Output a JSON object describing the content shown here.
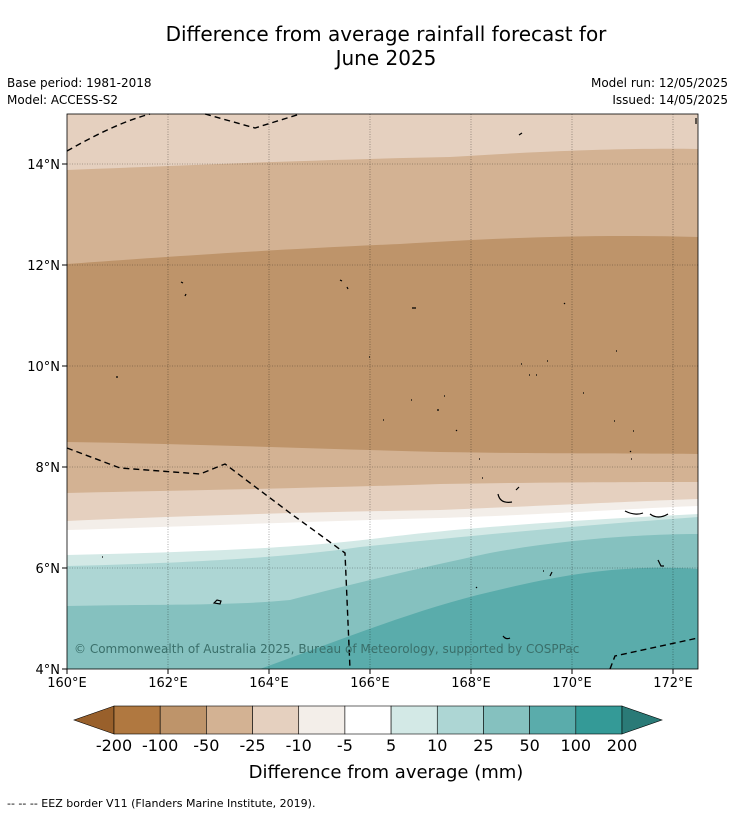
{
  "title_line1": "Difference from average rainfall forecast for",
  "title_line2": "June 2025",
  "base_period": "Base period: 1981-2018",
  "model": "Model: ACCESS-S2",
  "model_run": "Model run: 12/05/2025",
  "issued": "Issued: 14/05/2025",
  "copyright": "© Commonwealth of Australia 2025, Bureau of Meteorology, supported by COSPPac",
  "x_ticks": [
    "160°E",
    "162°E",
    "164°E",
    "166°E",
    "168°E",
    "170°E",
    "172°E"
  ],
  "y_ticks": [
    "14°N",
    "12°N",
    "10°N",
    "8°N",
    "6°N",
    "4°N"
  ],
  "colorbar": {
    "labels": [
      "-200",
      "-100",
      "-50",
      "-25",
      "-10",
      "-5",
      "5",
      "10",
      "25",
      "50",
      "100",
      "200"
    ],
    "colors": [
      "#99602b",
      "#b07840",
      "#be946a",
      "#d3b293",
      "#e5d0bf",
      "#f3eee9",
      "#ffffff",
      "#d3e9e6",
      "#add6d4",
      "#85c1bf",
      "#5aacab",
      "#349a97",
      "#2a7a77"
    ],
    "title": "Difference from average (mm)"
  },
  "footnote": "--  --  -- EEZ border V11 (Flanders Marine Institute, 2019)."
}
